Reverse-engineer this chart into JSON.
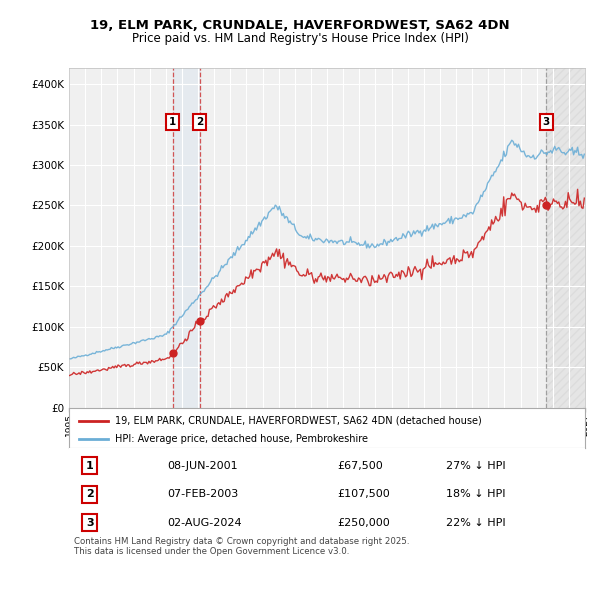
{
  "title_line1": "19, ELM PARK, CRUNDALE, HAVERFORDWEST, SA62 4DN",
  "title_line2": "Price paid vs. HM Land Registry's House Price Index (HPI)",
  "ylim": [
    0,
    420000
  ],
  "ytick_values": [
    0,
    50000,
    100000,
    150000,
    200000,
    250000,
    300000,
    350000,
    400000
  ],
  "background_color": "#ffffff",
  "plot_bg_color": "#f0f0f0",
  "grid_color": "#ffffff",
  "hpi_color": "#6baed6",
  "price_color": "#cc2222",
  "sale_marker_color": "#cc2222",
  "annotation_box_color": "#cc0000",
  "sale_points": [
    {
      "num": 1,
      "date": "08-JUN-2001",
      "price": 67500,
      "x_year": 2001.44
    },
    {
      "num": 2,
      "date": "07-FEB-2003",
      "price": 107500,
      "x_year": 2003.1
    },
    {
      "num": 3,
      "date": "02-AUG-2024",
      "price": 250000,
      "x_year": 2024.59
    }
  ],
  "legend_label_red": "19, ELM PARK, CRUNDALE, HAVERFORDWEST, SA62 4DN (detached house)",
  "legend_label_blue": "HPI: Average price, detached house, Pembrokeshire",
  "footer_text": "Contains HM Land Registry data © Crown copyright and database right 2025.\nThis data is licensed under the Open Government Licence v3.0.",
  "table_rows": [
    {
      "num": 1,
      "date": "08-JUN-2001",
      "price": "£67,500",
      "change": "27% ↓ HPI"
    },
    {
      "num": 2,
      "date": "07-FEB-2003",
      "price": "£107,500",
      "change": "18% ↓ HPI"
    },
    {
      "num": 3,
      "date": "02-AUG-2024",
      "price": "£250,000",
      "change": "22% ↓ HPI"
    }
  ],
  "xmin": 1995,
  "xmax": 2027
}
